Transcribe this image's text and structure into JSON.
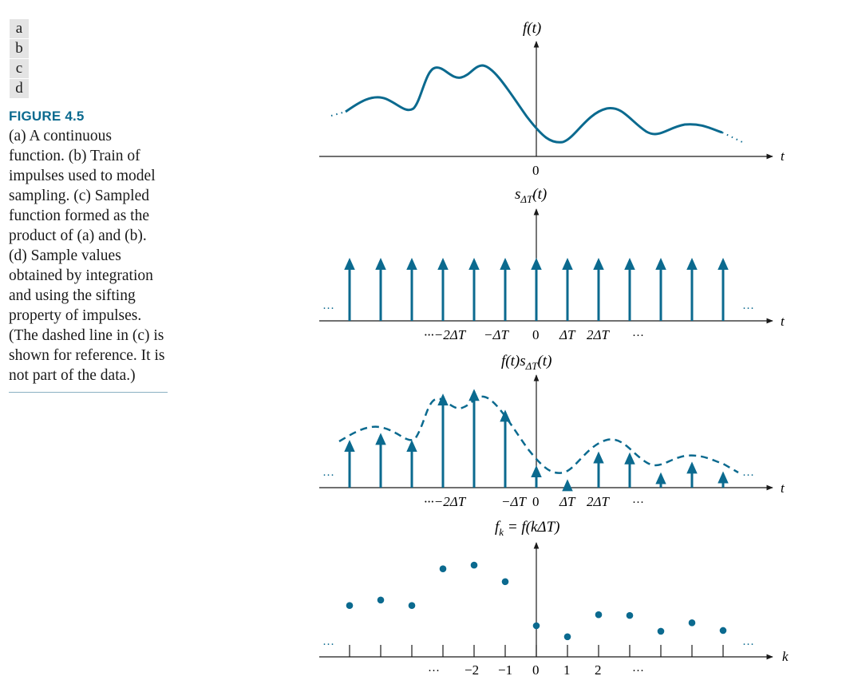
{
  "panel_labels": [
    "a",
    "b",
    "c",
    "d"
  ],
  "figure_title": "FIGURE 4.5",
  "caption": "(a) A continuous function. (b) Train of impulses used to model sampling. (c) Sampled function formed as the product of (a) and (b). (d) Sample values obtained by integration and using the sifting property of impulses. (The dashed line in (c) is shown for reference. It is not part of the data.)",
  "colors": {
    "accent": "#0b6a8f",
    "axis": "#1a1a1a",
    "caption_title": "#0b6a8f"
  },
  "panels": {
    "a": {
      "func_label": "f(t)",
      "axis_label": "t",
      "origin_label": "0"
    },
    "b": {
      "func_label": "sΔT(t)",
      "func_main": "s",
      "func_sub": "ΔT",
      "func_arg": "(t)",
      "axis_label": "t",
      "tick_labels": [
        "···−2ΔT",
        "−ΔT",
        "0",
        "ΔT",
        "2ΔT",
        "···"
      ],
      "ellipsis": "···"
    },
    "c": {
      "func_label": "f(t)sΔT(t)",
      "func_main": "f(t)s",
      "func_sub": "ΔT",
      "func_arg": "(t)",
      "axis_label": "t",
      "tick_labels": [
        "···−2ΔT",
        "−ΔT",
        "0",
        "ΔT",
        "2ΔT",
        "···"
      ],
      "ellipsis": "···"
    },
    "d": {
      "func_label": "fk = f(kΔT)",
      "func_main": "f",
      "func_sub": "k",
      "func_rest": " = f(kΔT)",
      "axis_label": "k",
      "tick_labels": [
        "···",
        "−2",
        "−1",
        "0",
        "1",
        "2",
        "···"
      ],
      "ellipsis": "···"
    }
  },
  "chart_data": {
    "type": "scatter",
    "x": [
      -6,
      -5,
      -4,
      -3,
      -2,
      -1,
      0,
      1,
      2,
      3,
      4,
      5,
      6
    ],
    "values": [
      0.55,
      0.7,
      0.55,
      1.55,
      1.65,
      1.2,
      0.0,
      -0.3,
      0.3,
      0.28,
      -0.15,
      0.08,
      -0.13
    ]
  }
}
